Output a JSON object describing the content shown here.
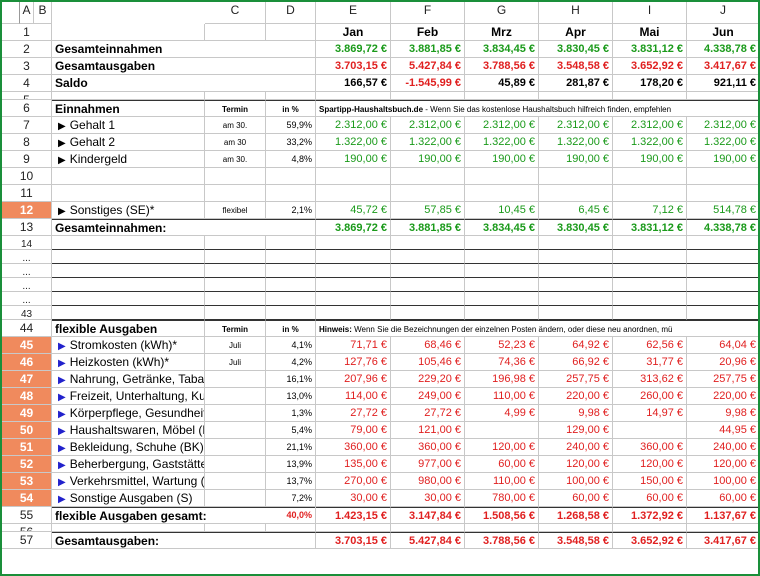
{
  "columns": [
    "A",
    "B",
    "C",
    "D",
    "E",
    "F",
    "G",
    "H",
    "I",
    "J",
    "K"
  ],
  "months": [
    "Jan",
    "Feb",
    "Mrz",
    "Apr",
    "Mai",
    "Jun"
  ],
  "rows": [
    {
      "n": "1",
      "type": "months"
    },
    {
      "n": "2",
      "type": "summary",
      "label": "Gesamteinnahmen",
      "values": [
        "3.869,72 €",
        "3.881,85 €",
        "3.834,45 €",
        "3.830,45 €",
        "3.831,12 €",
        "4.338,78 €"
      ],
      "color": "green"
    },
    {
      "n": "3",
      "type": "summary",
      "label": "Gesamtausgaben",
      "values": [
        "3.703,15 €",
        "5.427,84 €",
        "3.788,56 €",
        "3.548,58 €",
        "3.652,92 €",
        "3.417,67 €"
      ],
      "color": "red"
    },
    {
      "n": "4",
      "type": "summary",
      "label": "Saldo",
      "values": [
        "166,57 €",
        "-1.545,99 €",
        "45,89 €",
        "281,87 €",
        "178,20 €",
        "921,11 €"
      ],
      "color": "saldo"
    },
    {
      "n": "5",
      "type": "empty"
    },
    {
      "n": "6",
      "type": "section",
      "label": "Einnahmen",
      "termin": "Termin",
      "pct": "in %",
      "note_bold": "Spartipp-Haushaltsbuch.de",
      "note": " - Wenn Sie das kostenlose Haushaltsbuch hilfreich finden, empfehlen"
    },
    {
      "n": "7",
      "type": "item",
      "marker": "▶",
      "label": "Gehalt 1",
      "termin": "am 30.",
      "pct": "59,9%",
      "values": [
        "2.312,00 €",
        "2.312,00 €",
        "2.312,00 €",
        "2.312,00 €",
        "2.312,00 €",
        "2.312,00 €"
      ],
      "color": "green"
    },
    {
      "n": "8",
      "type": "item",
      "marker": "▶",
      "label": "Gehalt 2",
      "termin": "am 30",
      "pct": "33,2%",
      "values": [
        "1.322,00 €",
        "1.322,00 €",
        "1.322,00 €",
        "1.322,00 €",
        "1.322,00 €",
        "1.322,00 €"
      ],
      "color": "green"
    },
    {
      "n": "9",
      "type": "item",
      "marker": "▶",
      "label": "Kindergeld",
      "termin": "am 30.",
      "pct": "4,8%",
      "values": [
        "190,00 €",
        "190,00 €",
        "190,00 €",
        "190,00 €",
        "190,00 €",
        "190,00 €"
      ],
      "color": "green"
    },
    {
      "n": "10",
      "type": "empty"
    },
    {
      "n": "11",
      "type": "empty"
    },
    {
      "n": "12",
      "type": "item",
      "hl": true,
      "marker": "▶",
      "label": "Sonstiges (SE)*",
      "termin": "flexibel",
      "pct": "2,1%",
      "values": [
        "45,72 €",
        "57,85 €",
        "10,45 €",
        "6,45 €",
        "7,12 €",
        "514,78 €"
      ],
      "color": "green"
    },
    {
      "n": "13",
      "type": "total",
      "label": "Gesamteinnahmen:",
      "values": [
        "3.869,72 €",
        "3.881,85 €",
        "3.834,45 €",
        "3.830,45 €",
        "3.831,12 €",
        "4.338,78 €"
      ],
      "color": "green"
    },
    {
      "n": "14",
      "type": "gap"
    },
    {
      "n": "...",
      "type": "gap"
    },
    {
      "n": "...",
      "type": "gap"
    },
    {
      "n": "...",
      "type": "gap"
    },
    {
      "n": "...",
      "type": "gap"
    },
    {
      "n": "43",
      "type": "gap"
    },
    {
      "n": "44",
      "type": "section",
      "label": "flexible Ausgaben",
      "termin": "Termin",
      "pct": "in %",
      "note_bold": "Hinweis:",
      "note": " Wenn Sie die Bezeichnungen der einzelnen Posten ändern, oder diese neu anordnen, mü"
    },
    {
      "n": "45",
      "type": "item",
      "hl": true,
      "marker": "▶",
      "label": "Stromkosten (kWh)*",
      "termin": "Juli",
      "pct": "4,1%",
      "values": [
        "71,71 €",
        "68,46 €",
        "52,23 €",
        "64,92 €",
        "62,56 €",
        "64,04 €"
      ],
      "color": "red"
    },
    {
      "n": "46",
      "type": "item",
      "hl": true,
      "marker": "▶",
      "label": "Heizkosten (kWh)*",
      "termin": "Juli",
      "pct": "4,2%",
      "values": [
        "127,76 €",
        "105,46 €",
        "74,36 €",
        "66,92 €",
        "31,77 €",
        "20,96 €"
      ],
      "color": "red"
    },
    {
      "n": "47",
      "type": "item",
      "hl": true,
      "marker": "▶",
      "label": "Nahrung, Getränke, Tabak (VP)",
      "termin": "",
      "pct": "16,1%",
      "values": [
        "207,96 €",
        "229,20 €",
        "196,98 €",
        "257,75 €",
        "313,62 €",
        "257,75 €"
      ],
      "color": "red"
    },
    {
      "n": "48",
      "type": "item",
      "hl": true,
      "marker": "▶",
      "label": "Freizeit, Unterhaltung, Kultur (U",
      "termin": "",
      "pct": "13,0%",
      "values": [
        "114,00 €",
        "249,00 €",
        "110,00 €",
        "220,00 €",
        "260,00 €",
        "220,00 €"
      ],
      "color": "red"
    },
    {
      "n": "49",
      "type": "item",
      "hl": true,
      "marker": "▶",
      "label": "Körperpflege, Gesundheit (KP)",
      "termin": "",
      "pct": "1,3%",
      "values": [
        "27,72 €",
        "27,72 €",
        "4,99 €",
        "9,98 €",
        "14,97 €",
        "9,98 €"
      ],
      "color": "red"
    },
    {
      "n": "50",
      "type": "item",
      "hl": true,
      "marker": "▶",
      "label": "Haushaltswaren, Möbel (HW)",
      "termin": "",
      "pct": "5,4%",
      "values": [
        "79,00 €",
        "121,00 €",
        "",
        "129,00 €",
        "",
        "44,95 €"
      ],
      "color": "red"
    },
    {
      "n": "51",
      "type": "item",
      "hl": true,
      "marker": "▶",
      "label": "Bekleidung, Schuhe (BK)",
      "termin": "",
      "pct": "21,1%",
      "values": [
        "360,00 €",
        "360,00 €",
        "120,00 €",
        "240,00 €",
        "360,00 €",
        "240,00 €"
      ],
      "color": "red"
    },
    {
      "n": "52",
      "type": "item",
      "hl": true,
      "marker": "▶",
      "label": "Beherbergung, Gaststätten (BG)",
      "termin": "",
      "pct": "13,9%",
      "values": [
        "135,00 €",
        "977,00 €",
        "60,00 €",
        "120,00 €",
        "120,00 €",
        "120,00 €"
      ],
      "color": "red"
    },
    {
      "n": "53",
      "type": "item",
      "hl": true,
      "marker": "▶",
      "label": "Verkehrsmittel, Wartung (VK)",
      "termin": "",
      "pct": "13,7%",
      "values": [
        "270,00 €",
        "980,00 €",
        "110,00 €",
        "100,00 €",
        "150,00 €",
        "100,00 €"
      ],
      "color": "red"
    },
    {
      "n": "54",
      "type": "item",
      "hl": true,
      "marker": "▶",
      "label": "Sonstige Ausgaben (S)",
      "termin": "",
      "pct": "7,2%",
      "values": [
        "30,00 €",
        "30,00 €",
        "780,00 €",
        "60,00 €",
        "60,00 €",
        "60,00 €"
      ],
      "color": "red"
    },
    {
      "n": "55",
      "type": "total",
      "label": "flexible Ausgaben gesamt:",
      "pct": "40,0%",
      "values": [
        "1.423,15 €",
        "3.147,84 €",
        "1.508,56 €",
        "1.268,58 €",
        "1.372,92 €",
        "1.137,67 €"
      ],
      "color": "red"
    },
    {
      "n": "56",
      "type": "empty"
    },
    {
      "n": "57",
      "type": "total",
      "label": "Gesamtausgaben:",
      "values": [
        "3.703,15 €",
        "5.427,84 €",
        "3.788,56 €",
        "3.548,58 €",
        "3.652,92 €",
        "3.417,67 €"
      ],
      "color": "red"
    }
  ],
  "colors": {
    "income": "#1a9a1a",
    "expense": "#e02020",
    "highlight": "#f08a5d",
    "frame": "#1a8f3a",
    "arrow": "#2222cc"
  }
}
